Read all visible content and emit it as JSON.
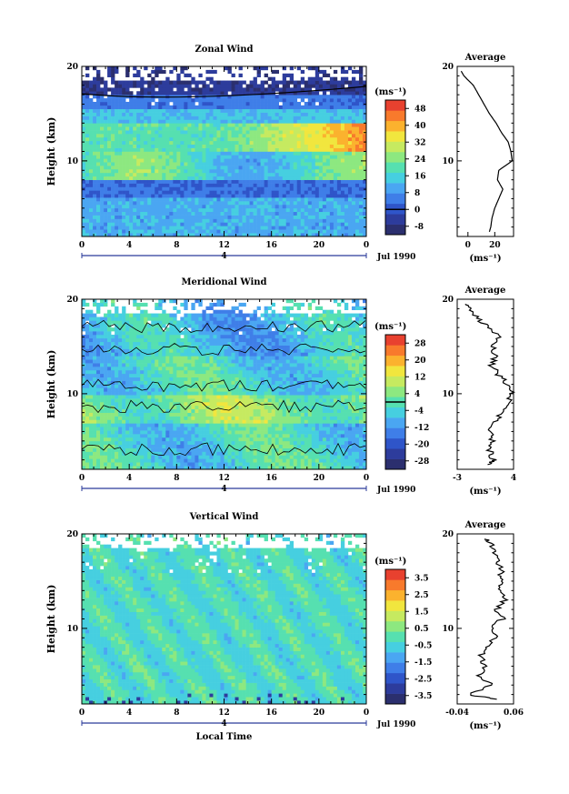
{
  "chart_data": [
    {
      "type": "heatmap",
      "title": "Zonal Wind",
      "ylabel": "Height (km)",
      "xlabel": "",
      "x_ticks": [
        "0",
        "4",
        "8",
        "12",
        "16",
        "20",
        "0"
      ],
      "y_ticks": [
        "20",
        "10"
      ],
      "xlim": [
        0,
        24
      ],
      "ylim": [
        2,
        20
      ],
      "day_marker": "4",
      "date_label": "Jul 1990",
      "colorbar": {
        "unit": "(ms⁻¹)",
        "ticks": [
          "48",
          "40",
          "32",
          "24",
          "16",
          "8",
          "0",
          "-8"
        ],
        "range": [
          -12,
          52
        ],
        "contour_level": 0
      },
      "average": {
        "title": "Average",
        "unit": "(ms⁻¹)",
        "x_ticks": [
          "0",
          "20"
        ],
        "xlim": [
          -8,
          34
        ],
        "y_ticks": [
          "20",
          "10"
        ],
        "height": [
          2.5,
          3,
          4,
          5,
          6,
          7,
          8,
          9,
          10,
          11,
          12,
          13,
          14,
          15,
          16,
          17,
          18,
          19,
          19.5
        ],
        "values": [
          16,
          17,
          18,
          20,
          23,
          26,
          22,
          23,
          33,
          32,
          30,
          25,
          21,
          16,
          12,
          8,
          4,
          -3,
          -5
        ]
      }
    },
    {
      "type": "heatmap",
      "title": "Meridional Wind",
      "ylabel": "Height (km)",
      "xlabel": "",
      "x_ticks": [
        "0",
        "4",
        "8",
        "12",
        "16",
        "20",
        "0"
      ],
      "y_ticks": [
        "20",
        "10"
      ],
      "xlim": [
        0,
        24
      ],
      "ylim": [
        2,
        20
      ],
      "day_marker": "4",
      "date_label": "Jul 1990",
      "colorbar": {
        "unit": "(ms⁻¹)",
        "ticks": [
          "28",
          "20",
          "12",
          "4",
          "-4",
          "-12",
          "-20",
          "-28"
        ],
        "range": [
          -32,
          32
        ],
        "contour_level": 0
      },
      "average": {
        "title": "Average",
        "unit": "(ms⁻¹)",
        "x_ticks": [
          "-3",
          "4"
        ],
        "xlim": [
          -3,
          4
        ],
        "y_ticks": [
          "20",
          "10"
        ],
        "height": [
          2.5,
          3,
          4,
          5,
          6,
          7,
          8,
          9,
          10,
          11,
          12,
          13,
          14,
          15,
          16,
          17,
          18,
          19,
          19.5
        ],
        "values": [
          1.2,
          1.5,
          1.0,
          1.4,
          1.2,
          1.7,
          2.6,
          3.2,
          3.8,
          3.3,
          2.1,
          1.2,
          1.8,
          1.4,
          2.0,
          1.0,
          -0.5,
          -1.5,
          -2.0
        ]
      }
    },
    {
      "type": "heatmap",
      "title": "Vertical Wind",
      "ylabel": "Height (km)",
      "xlabel": "Local Time",
      "x_ticks": [
        "0",
        "4",
        "8",
        "12",
        "16",
        "20",
        "0"
      ],
      "y_ticks": [
        "20",
        "10"
      ],
      "xlim": [
        0,
        24
      ],
      "ylim": [
        2,
        20
      ],
      "day_marker": "4",
      "date_label": "Jul 1990",
      "colorbar": {
        "unit": "(ms⁻¹)",
        "ticks": [
          "3.5",
          "2.5",
          "1.5",
          "0.5",
          "-0.5",
          "-1.5",
          "-2.5",
          "-3.5"
        ],
        "range": [
          -4,
          4
        ]
      },
      "average": {
        "title": "Average",
        "unit": "(ms⁻¹)",
        "x_ticks": [
          "-0.04",
          "0.06"
        ],
        "xlim": [
          -0.04,
          0.06
        ],
        "y_ticks": [
          "20",
          "10"
        ],
        "height": [
          2.5,
          3,
          4,
          5,
          6,
          7,
          8,
          9,
          10,
          11,
          12,
          13,
          14,
          15,
          16,
          17,
          18,
          19,
          19.5
        ],
        "values": [
          0.03,
          -0.02,
          0.02,
          0.0,
          0.01,
          0.0,
          0.01,
          0.03,
          0.02,
          0.04,
          0.03,
          0.045,
          0.04,
          0.035,
          0.04,
          0.03,
          0.025,
          0.02,
          0.01
        ]
      }
    }
  ]
}
